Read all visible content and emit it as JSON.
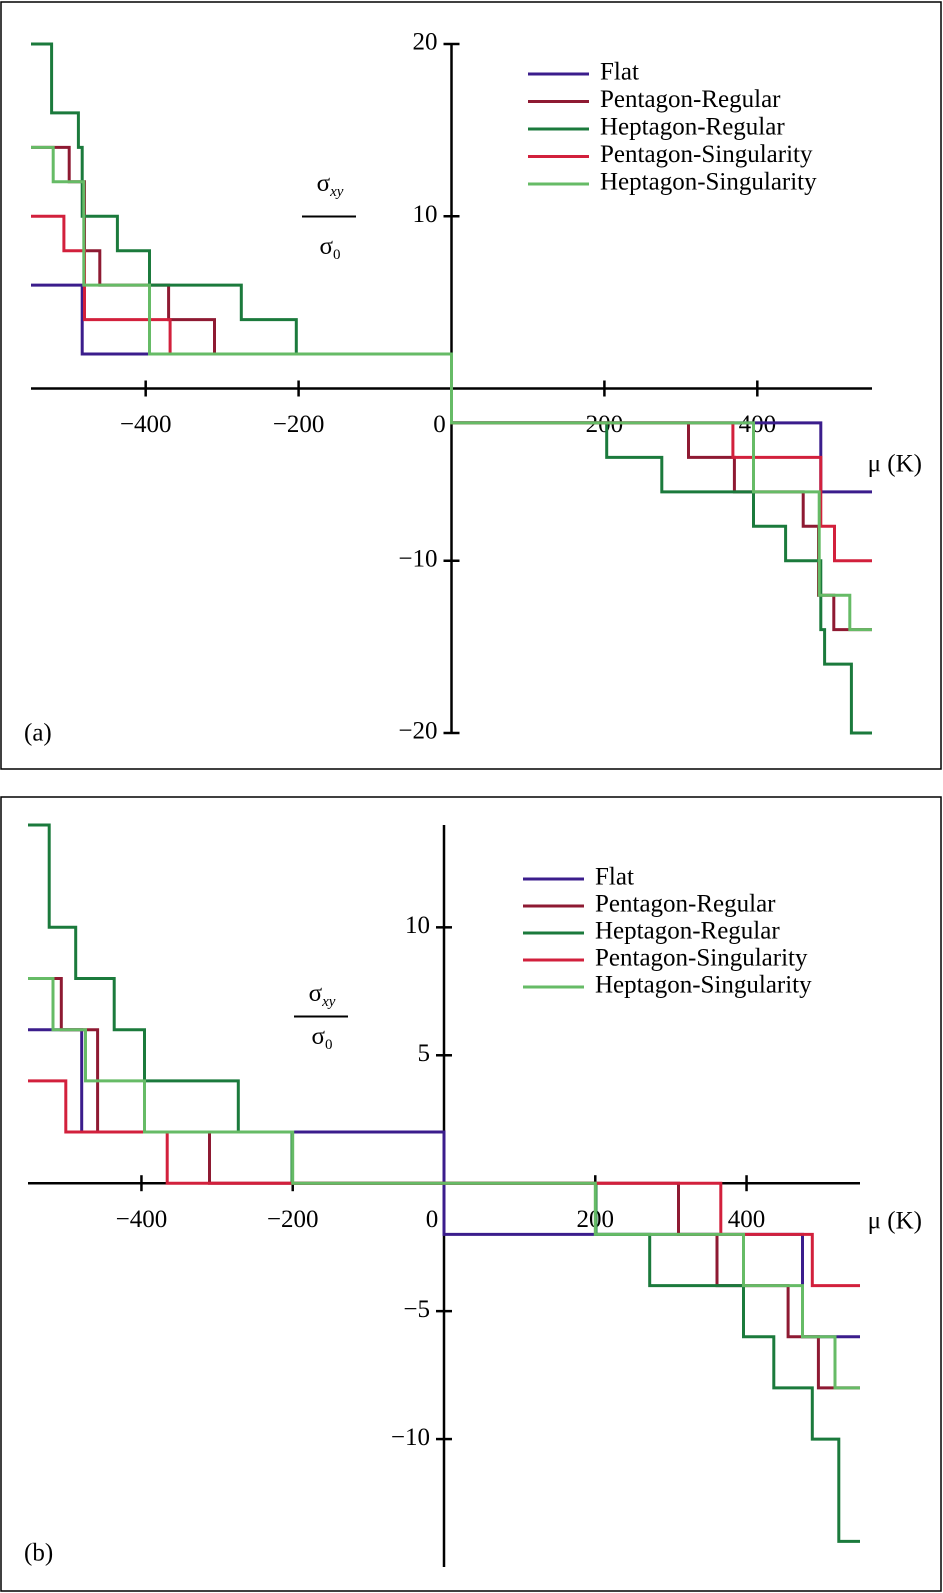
{
  "chart_data": [
    {
      "type": "line",
      "panel_label": "(a)",
      "xlabel": "μ (K)",
      "ylabel": {
        "numerator": "σ",
        "numerator_sub": "xy",
        "denominator": "σ",
        "denominator_sub": "0"
      },
      "xlim": [
        -550,
        550
      ],
      "ylim": [
        -20,
        20
      ],
      "xticks": [
        {
          "value": -400,
          "label": "−400"
        },
        {
          "value": -200,
          "label": "−200"
        },
        0,
        200,
        400
      ],
      "yticks": [
        {
          "value": -20,
          "label": "−20"
        },
        {
          "value": -10,
          "label": "−10"
        },
        10,
        20
      ],
      "legend": "top-right",
      "series": [
        {
          "name": "Flat",
          "color": "#3b1d8c",
          "x": [
            -550,
            -483,
            -483,
            0,
            0,
            483,
            483,
            550
          ],
          "values": [
            6,
            6,
            2,
            2,
            -2,
            -2,
            -6,
            -6
          ]
        },
        {
          "name": "Pentagon-Regular",
          "color": "#8e1a32",
          "x": [
            -550,
            -500,
            -500,
            -480,
            -480,
            -460,
            -460,
            -370,
            -370,
            -310,
            -310,
            0,
            0,
            310,
            310,
            370,
            370,
            460,
            460,
            480,
            480,
            500,
            500,
            550
          ],
          "values": [
            14,
            14,
            12,
            12,
            8,
            8,
            6,
            6,
            4,
            4,
            2,
            2,
            -2,
            -2,
            -4,
            -4,
            -6,
            -6,
            -8,
            -8,
            -12,
            -12,
            -14,
            -14
          ]
        },
        {
          "name": "Heptagon-Regular",
          "color": "#1b7a3c",
          "x": [
            -550,
            -523,
            -523,
            -488,
            -488,
            -483,
            -483,
            -437,
            -437,
            -395,
            -395,
            -275,
            -275,
            -203,
            -203,
            0,
            0,
            203,
            203,
            275,
            275,
            395,
            395,
            437,
            437,
            483,
            483,
            488,
            488,
            523,
            523,
            550
          ],
          "values": [
            20,
            20,
            16,
            16,
            14,
            14,
            10,
            10,
            8,
            8,
            6,
            6,
            4,
            4,
            2,
            2,
            -2,
            -2,
            -4,
            -4,
            -6,
            -6,
            -8,
            -8,
            -10,
            -10,
            -14,
            -14,
            -16,
            -16,
            -20,
            -20
          ]
        },
        {
          "name": "Pentagon-Singularity",
          "color": "#d2203c",
          "x": [
            -550,
            -507,
            -507,
            -480,
            -480,
            -368,
            -368,
            0,
            0,
            368,
            368,
            483,
            483,
            501,
            501,
            550
          ],
          "values": [
            10,
            10,
            8,
            8,
            4,
            4,
            2,
            2,
            -2,
            -2,
            -4,
            -4,
            -8,
            -8,
            -10,
            -10
          ]
        },
        {
          "name": "Heptagon-Singularity",
          "color": "#66bb66",
          "x": [
            -550,
            -521,
            -521,
            -481,
            -481,
            -395,
            -395,
            0,
            0,
            395,
            395,
            481,
            481,
            521,
            521,
            550
          ],
          "values": [
            14,
            14,
            12,
            12,
            6,
            6,
            2,
            2,
            -2,
            -2,
            -6,
            -6,
            -12,
            -12,
            -14,
            -14
          ]
        }
      ]
    },
    {
      "type": "line",
      "panel_label": "(b)",
      "xlabel": "μ (K)",
      "ylabel": {
        "numerator": "σ",
        "numerator_sub": "xy",
        "denominator": "σ",
        "denominator_sub": "0"
      },
      "xlim": [
        -550,
        550
      ],
      "ylim": [
        -15,
        14
      ],
      "xticks": [
        {
          "value": -400,
          "label": "−400"
        },
        {
          "value": -200,
          "label": "−200"
        },
        0,
        200,
        400
      ],
      "yticks": [
        {
          "value": -10,
          "label": "−10"
        },
        {
          "value": -5,
          "label": "−5"
        },
        5,
        10
      ],
      "legend": "top-right",
      "series": [
        {
          "name": "Flat",
          "color": "#3b1d8c",
          "x": [
            -550,
            -479,
            -479,
            0,
            0,
            474,
            474,
            550
          ],
          "values": [
            6,
            6,
            2,
            2,
            -2,
            -2,
            -6,
            -6
          ]
        },
        {
          "name": "Pentagon-Regular",
          "color": "#8e1a32",
          "x": [
            -550,
            -506,
            -506,
            -458,
            -458,
            -310,
            -310,
            310,
            310,
            361,
            361,
            455,
            455,
            495,
            495,
            550
          ],
          "values": [
            8,
            8,
            6,
            6,
            2,
            2,
            0,
            0,
            -2,
            -2,
            -4,
            -4,
            -6,
            -6,
            -8,
            -8
          ]
        },
        {
          "name": "Heptagon-Regular",
          "color": "#1b7a3c",
          "x": [
            -550,
            -522,
            -522,
            -487,
            -487,
            -436,
            -436,
            -396,
            -396,
            -272,
            -272,
            -201,
            -201,
            201,
            201,
            272,
            272,
            396,
            396,
            436,
            436,
            487,
            487,
            522,
            522,
            550
          ],
          "values": [
            14,
            14,
            10,
            10,
            8,
            8,
            6,
            6,
            4,
            4,
            2,
            2,
            0,
            0,
            -2,
            -2,
            -4,
            -4,
            -6,
            -6,
            -8,
            -8,
            -10,
            -10,
            -14,
            -14
          ]
        },
        {
          "name": "Pentagon-Singularity",
          "color": "#d2203c",
          "x": [
            -550,
            -500,
            -500,
            -366,
            -366,
            366,
            366,
            487,
            487,
            550
          ],
          "values": [
            4,
            4,
            2,
            2,
            0,
            0,
            -2,
            -2,
            -4,
            -4
          ]
        },
        {
          "name": "Heptagon-Singularity",
          "color": "#66bb66",
          "x": [
            -550,
            -517,
            -517,
            -474,
            -474,
            -396,
            -396,
            -200,
            -200,
            200,
            200,
            396,
            396,
            474,
            474,
            517,
            517,
            550
          ],
          "values": [
            8,
            8,
            6,
            6,
            4,
            4,
            2,
            2,
            0,
            0,
            -2,
            -2,
            -4,
            -4,
            -6,
            -6,
            -8,
            -8
          ]
        }
      ]
    }
  ]
}
